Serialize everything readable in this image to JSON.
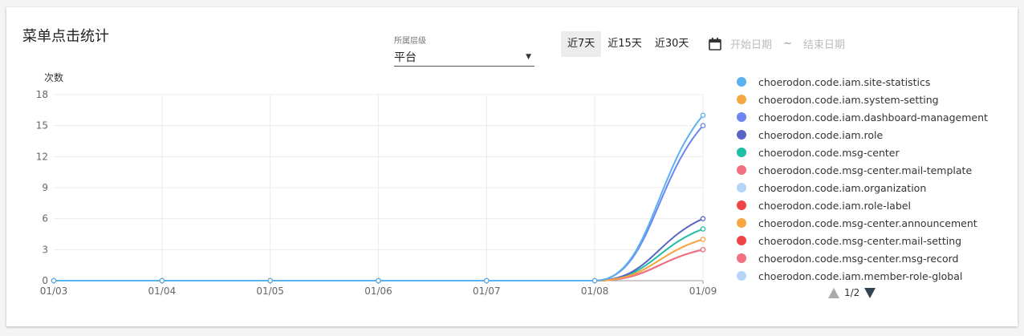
{
  "header": {
    "title": "菜单点击统计"
  },
  "level_select": {
    "label": "所属层级",
    "value": "平台"
  },
  "range_buttons": [
    "近7天",
    "近15天",
    "近30天"
  ],
  "date_range": {
    "start_placeholder": "开始日期",
    "separator": "~",
    "end_placeholder": "结束日期"
  },
  "pager": {
    "text": "1/2"
  },
  "chart_data": {
    "type": "line",
    "ylabel": "次数",
    "xlabel": "",
    "categories": [
      "01/03",
      "01/04",
      "01/05",
      "01/06",
      "01/07",
      "01/08",
      "01/09"
    ],
    "ylim": [
      0,
      18
    ],
    "yticks": [
      0,
      3,
      6,
      9,
      12,
      15,
      18
    ],
    "grid": true,
    "legend_position": "right",
    "series": [
      {
        "name": "choerodon.code.iam.site-statistics",
        "color": "#5ab1ef",
        "values": [
          0,
          0,
          0,
          0,
          0,
          0,
          16
        ]
      },
      {
        "name": "choerodon.code.iam.system-setting",
        "color": "#f5a742",
        "values": [
          0,
          0,
          0,
          0,
          0,
          0,
          4
        ]
      },
      {
        "name": "choerodon.code.iam.dashboard-management",
        "color": "#6d86f2",
        "values": [
          0,
          0,
          0,
          0,
          0,
          0,
          15
        ]
      },
      {
        "name": "choerodon.code.iam.role",
        "color": "#5866c6",
        "values": [
          0,
          0,
          0,
          0,
          0,
          0,
          6
        ]
      },
      {
        "name": "choerodon.code.msg-center",
        "color": "#1fbfa5",
        "values": [
          0,
          0,
          0,
          0,
          0,
          0,
          5
        ]
      },
      {
        "name": "choerodon.code.msg-center.mail-template",
        "color": "#f27081",
        "values": [
          0,
          0,
          0,
          0,
          0,
          0,
          3
        ]
      },
      {
        "name": "choerodon.code.iam.organization",
        "color": "#b4d5f7",
        "values": [
          0,
          0,
          0,
          0,
          0,
          0,
          3
        ]
      },
      {
        "name": "choerodon.code.iam.role-label",
        "color": "#ee4545",
        "values": [
          0,
          0,
          0,
          0,
          0,
          0,
          3
        ]
      },
      {
        "name": "choerodon.code.msg-center.announcement",
        "color": "#f5a742",
        "values": [
          0,
          0,
          0,
          0,
          0,
          0,
          4
        ]
      },
      {
        "name": "choerodon.code.msg-center.mail-setting",
        "color": "#ee4545",
        "values": [
          0,
          0,
          0,
          0,
          0,
          0,
          3
        ]
      },
      {
        "name": "choerodon.code.msg-center.msg-record",
        "color": "#f27081",
        "values": [
          0,
          0,
          0,
          0,
          0,
          0,
          3
        ]
      },
      {
        "name": "choerodon.code.iam.member-role-global",
        "color": "#b4d5f7",
        "values": [
          0,
          0,
          0,
          0,
          0,
          0,
          3
        ]
      }
    ]
  }
}
